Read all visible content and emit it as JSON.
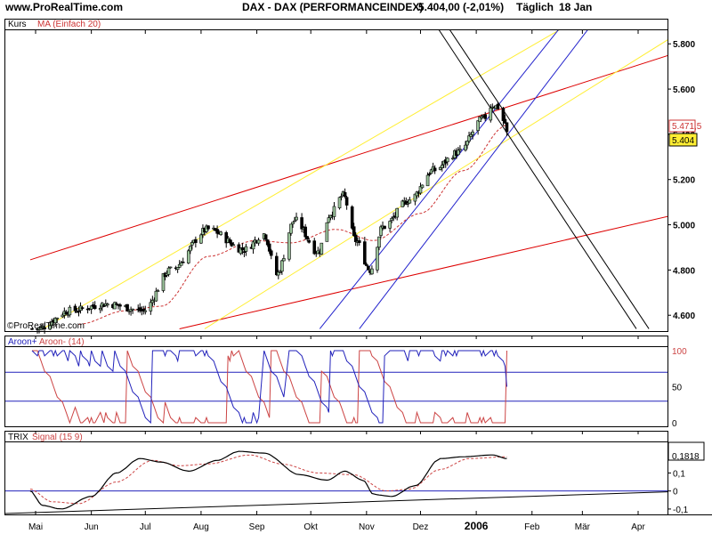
{
  "header": {
    "site": "www.ProRealTime.com",
    "instrument": "DAX - DAX (PERFORMANCEINDEX)",
    "quote": "5.404,00 (-2,01%)",
    "period": "Täglich",
    "date": "18 Jan"
  },
  "watermark": "©ProRealTime.com",
  "colors": {
    "price_up": "#9cc59c",
    "price_down": "#000000",
    "ma": "#cc3333",
    "red_channel": "#dd0000",
    "yellow_channel": "#ffee33",
    "blue_channel": "#2222cc",
    "black_channel": "#000000",
    "aroon_plus": "#2222bb",
    "aroon_minus": "#cc4444",
    "trix": "#000000",
    "signal": "#cc4444",
    "current_box": "#ffee33"
  },
  "chart_data": [
    {
      "type": "candlestick",
      "panel": "price",
      "title_left": "Kurs",
      "legend": [
        "MA (Einfach 20)"
      ],
      "y_ticks": [
        4600,
        4800,
        5000,
        5200,
        5400,
        5600,
        5800
      ],
      "y_tick_labels": [
        "4.600",
        "4.800",
        "5.000",
        "5.200",
        "5.400",
        "5.600",
        "5.800"
      ],
      "ylim": [
        4530,
        5860
      ],
      "price_anchors": [
        [
          "2005-05-02",
          4540
        ],
        [
          "2005-05-20",
          4620
        ],
        [
          "2005-06-10",
          4650
        ],
        [
          "2005-06-30",
          4620
        ],
        [
          "2005-07-15",
          4800
        ],
        [
          "2005-08-05",
          4980
        ],
        [
          "2005-08-25",
          4890
        ],
        [
          "2005-09-05",
          4960
        ],
        [
          "2005-09-12",
          4780
        ],
        [
          "2005-09-22",
          5020
        ],
        [
          "2005-10-05",
          4880
        ],
        [
          "2005-10-12",
          5050
        ],
        [
          "2005-10-19",
          5130
        ],
        [
          "2005-10-26",
          4930
        ],
        [
          "2005-11-03",
          4800
        ],
        [
          "2005-11-10",
          4990
        ],
        [
          "2005-11-25",
          5110
        ],
        [
          "2005-12-08",
          5240
        ],
        [
          "2005-12-22",
          5320
        ],
        [
          "2006-01-05",
          5470
        ],
        [
          "2006-01-10",
          5530
        ],
        [
          "2006-01-13",
          5520
        ],
        [
          "2006-01-17",
          5450
        ],
        [
          "2006-01-18",
          5404
        ]
      ],
      "ma_anchors": [
        [
          "2005-05-25",
          4560
        ],
        [
          "2005-06-20",
          4620
        ],
        [
          "2005-07-10",
          4640
        ],
        [
          "2005-08-05",
          4860
        ],
        [
          "2005-08-31",
          4930
        ],
        [
          "2005-09-20",
          4920
        ],
        [
          "2005-10-15",
          4980
        ],
        [
          "2005-11-05",
          4930
        ],
        [
          "2005-12-01",
          5050
        ],
        [
          "2005-12-25",
          5240
        ],
        [
          "2006-01-18",
          5440
        ]
      ],
      "labels": {
        "last_close": "5.404",
        "ma_value": "5.471,5"
      },
      "last_close": 5404,
      "ma_value": 5471.5,
      "trend_lines": [
        {
          "color": "red",
          "from": [
            "2005-04-28",
            4845
          ],
          "to": [
            "2006-04-30",
            5780
          ]
        },
        {
          "color": "red",
          "from": [
            "2005-07-20",
            4540
          ],
          "to": [
            "2006-04-30",
            5060
          ]
        },
        {
          "color": "yellow",
          "from": [
            "2005-05-05",
            4540
          ],
          "to": [
            "2006-03-02",
            5925
          ]
        },
        {
          "color": "yellow",
          "from": [
            "2005-08-03",
            4540
          ],
          "to": [
            "2006-04-30",
            5880
          ]
        },
        {
          "color": "blue",
          "from": [
            "2005-10-06",
            4540
          ],
          "to": [
            "2006-02-22",
            5925
          ]
        },
        {
          "color": "blue",
          "from": [
            "2005-10-28",
            4540
          ],
          "to": [
            "2006-03-10",
            5925
          ]
        },
        {
          "color": "black",
          "from": [
            "2005-12-06",
            5925
          ],
          "to": [
            "2006-03-31",
            4540
          ]
        },
        {
          "color": "black",
          "from": [
            "2005-12-12",
            5925
          ],
          "to": [
            "2006-04-07",
            4540
          ]
        }
      ]
    },
    {
      "type": "line",
      "panel": "aroon",
      "legend": [
        "Aroon+",
        "Aroon- (14)"
      ],
      "ylim": [
        0,
        100
      ],
      "y_ticks": [
        0,
        50,
        100
      ],
      "y_tick_labels": [
        "0",
        "50",
        "100"
      ],
      "ref_lines": [
        30,
        70
      ],
      "aroon_plus_last": 50,
      "aroon_minus_last": 100
    },
    {
      "type": "line",
      "panel": "trix",
      "legend": [
        "TRIX",
        "Signal (15 9)"
      ],
      "ylim": [
        -0.13,
        0.27
      ],
      "y_ticks": [
        -0.1,
        0,
        0.1
      ],
      "y_tick_labels": [
        "-0,1",
        "0",
        "0,1"
      ],
      "trix_anchors": [
        [
          "2005-04-28",
          0.0
        ],
        [
          "2005-05-05",
          -0.08
        ],
        [
          "2005-05-15",
          -0.1
        ],
        [
          "2005-06-01",
          -0.03
        ],
        [
          "2005-06-15",
          0.1
        ],
        [
          "2005-06-28",
          0.18
        ],
        [
          "2005-07-10",
          0.16
        ],
        [
          "2005-07-25",
          0.11
        ],
        [
          "2005-08-10",
          0.17
        ],
        [
          "2005-08-22",
          0.22
        ],
        [
          "2005-09-05",
          0.21
        ],
        [
          "2005-09-25",
          0.09
        ],
        [
          "2005-10-10",
          0.06
        ],
        [
          "2005-10-20",
          0.11
        ],
        [
          "2005-10-30",
          0.06
        ],
        [
          "2005-11-05",
          -0.02
        ],
        [
          "2005-11-15",
          -0.03
        ],
        [
          "2005-11-28",
          0.03
        ],
        [
          "2005-12-12",
          0.18
        ],
        [
          "2005-12-25",
          0.19
        ],
        [
          "2006-01-10",
          0.2
        ],
        [
          "2006-01-18",
          0.18
        ]
      ],
      "signal_anchors": [
        [
          "2005-04-28",
          0.01
        ],
        [
          "2005-05-10",
          -0.06
        ],
        [
          "2005-05-25",
          -0.07
        ],
        [
          "2005-06-15",
          0.05
        ],
        [
          "2005-07-05",
          0.17
        ],
        [
          "2005-07-20",
          0.14
        ],
        [
          "2005-08-05",
          0.15
        ],
        [
          "2005-08-28",
          0.2
        ],
        [
          "2005-09-15",
          0.15
        ],
        [
          "2005-10-05",
          0.1
        ],
        [
          "2005-10-25",
          0.09
        ],
        [
          "2005-11-12",
          0.0
        ],
        [
          "2005-11-25",
          0.01
        ],
        [
          "2005-12-12",
          0.12
        ],
        [
          "2005-12-28",
          0.18
        ],
        [
          "2006-01-18",
          0.19
        ]
      ],
      "labels": {
        "last_value": "0,1818"
      },
      "last_value": 0.1818
    }
  ],
  "x_axis": {
    "ticks": [
      {
        "label": "Mai",
        "date": "2005-05-01"
      },
      {
        "label": "Jun",
        "date": "2005-06-01"
      },
      {
        "label": "Jul",
        "date": "2005-07-01"
      },
      {
        "label": "Aug",
        "date": "2005-08-01"
      },
      {
        "label": "Sep",
        "date": "2005-09-01"
      },
      {
        "label": "Okt",
        "date": "2005-10-01"
      },
      {
        "label": "Nov",
        "date": "2005-11-01"
      },
      {
        "label": "Dez",
        "date": "2005-12-01"
      },
      {
        "label": "2006",
        "date": "2006-01-01",
        "bold": true
      },
      {
        "label": "Feb",
        "date": "2006-02-01"
      },
      {
        "label": "Mär",
        "date": "2006-03-01"
      },
      {
        "label": "Apr",
        "date": "2006-04-01"
      }
    ]
  }
}
